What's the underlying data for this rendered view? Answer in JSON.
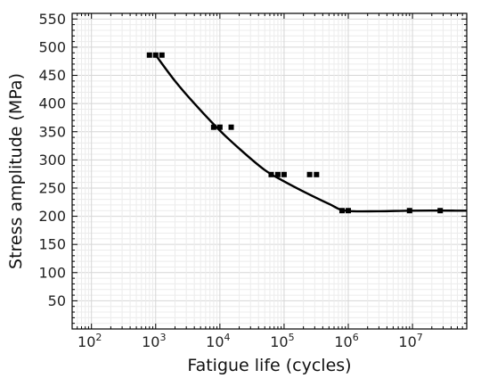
{
  "chart_data": {
    "type": "scatter",
    "xlabel": "Fatigue life (cycles)",
    "ylabel": "Stress amplitude (MPa)",
    "x_scale": "log",
    "xlim": [
      50,
      70000000
    ],
    "ylim": [
      0,
      560
    ],
    "y_ticks": [
      50,
      100,
      150,
      200,
      250,
      300,
      350,
      400,
      450,
      500,
      550
    ],
    "x_ticks": [
      {
        "mantissa": "10",
        "exp": "2"
      },
      {
        "mantissa": "10",
        "exp": "3"
      },
      {
        "mantissa": "10",
        "exp": "4"
      },
      {
        "mantissa": "10",
        "exp": "5"
      },
      {
        "mantissa": "10",
        "exp": "6"
      },
      {
        "mantissa": "10",
        "exp": "7"
      }
    ],
    "grid": true,
    "series": [
      {
        "kind": "points",
        "points": [
          {
            "x": 800,
            "y": 486
          },
          {
            "x": 1000,
            "y": 486
          },
          {
            "x": 1250,
            "y": 486
          },
          {
            "x": 8000,
            "y": 358
          },
          {
            "x": 10000,
            "y": 358
          },
          {
            "x": 15000,
            "y": 358
          },
          {
            "x": 63000,
            "y": 274
          },
          {
            "x": 80000,
            "y": 274
          },
          {
            "x": 100000,
            "y": 274
          },
          {
            "x": 250000,
            "y": 274
          },
          {
            "x": 320000,
            "y": 274
          },
          {
            "x": 800000,
            "y": 210
          },
          {
            "x": 1000000,
            "y": 210
          },
          {
            "x": 9000000,
            "y": 210
          },
          {
            "x": 27000000,
            "y": 210
          }
        ]
      },
      {
        "kind": "fit-curve",
        "points": [
          {
            "x": 1000,
            "y": 486
          },
          {
            "x": 2000,
            "y": 440
          },
          {
            "x": 4000,
            "y": 400
          },
          {
            "x": 10000,
            "y": 352
          },
          {
            "x": 20000,
            "y": 320
          },
          {
            "x": 50000,
            "y": 282
          },
          {
            "x": 100000,
            "y": 262
          },
          {
            "x": 200000,
            "y": 244
          },
          {
            "x": 500000,
            "y": 222
          },
          {
            "x": 900000,
            "y": 210
          },
          {
            "x": 3000000,
            "y": 209
          },
          {
            "x": 10000000,
            "y": 210
          },
          {
            "x": 70000000,
            "y": 210
          }
        ]
      }
    ],
    "colors": {
      "points": "#000000",
      "curve": "#000000"
    }
  }
}
